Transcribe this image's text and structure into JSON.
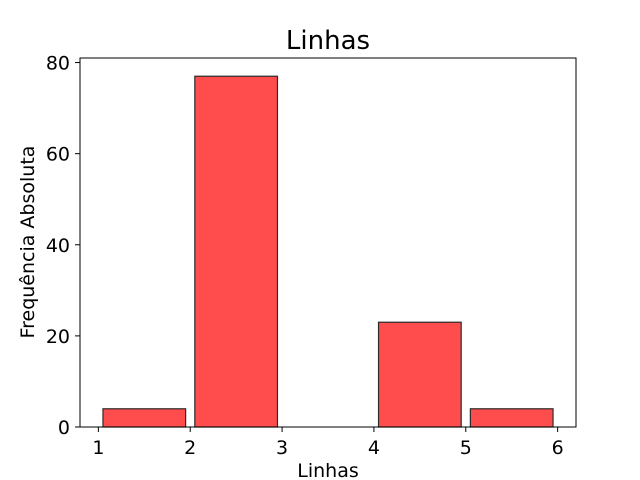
{
  "chart_data": {
    "type": "bar",
    "title": "Linhas",
    "xlabel": "Linhas",
    "ylabel": "Frequência Absoluta",
    "xlim": [
      0.8,
      6.2
    ],
    "ylim": [
      0,
      81
    ],
    "x_ticks": [
      1,
      2,
      3,
      4,
      5,
      6
    ],
    "y_ticks": [
      0,
      20,
      40,
      60,
      80
    ],
    "bins": [
      {
        "start": 1.05,
        "end": 1.95,
        "value": 4
      },
      {
        "start": 2.05,
        "end": 2.95,
        "value": 77
      },
      {
        "start": 3.05,
        "end": 3.95,
        "value": 0
      },
      {
        "start": 4.05,
        "end": 4.95,
        "value": 23
      },
      {
        "start": 5.05,
        "end": 5.95,
        "value": 4
      }
    ],
    "bar_color": "#ff4c4c",
    "edge_color": "#2b2b2b",
    "grid": false,
    "legend": "none"
  }
}
